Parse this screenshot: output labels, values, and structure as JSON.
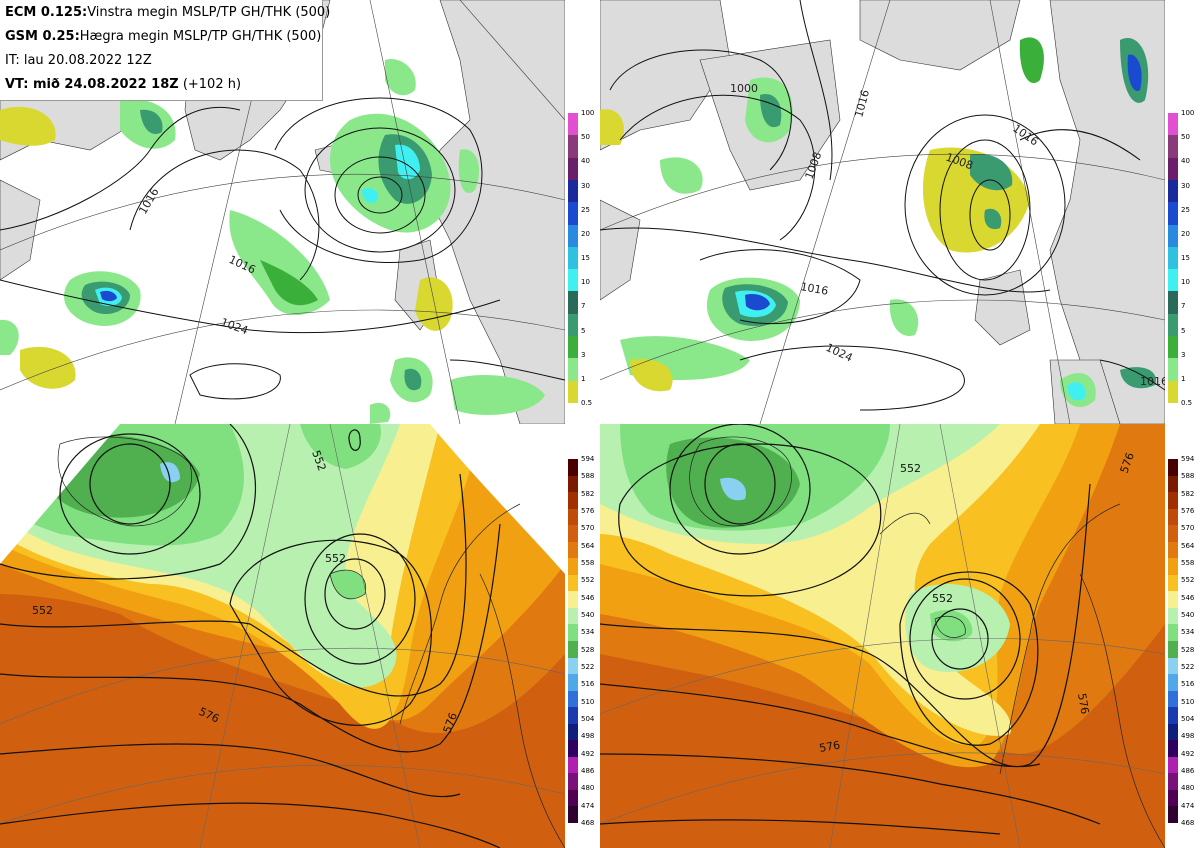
{
  "header": {
    "line1_bold": "ECM 0.125:",
    "line1_text": "Vinstra megin MSLP/TP GH/THK (500)",
    "line2_bold": "GSM 0.25:",
    "line2_text": "Hægra megin MSLP/TP GH/THK (500)",
    "line3": "IT: lau 20.08.2022 12Z",
    "line4_bold": "VT: mið 24.08.2022 18Z",
    "line4_text": " (+102 h)"
  },
  "precip_colorbar": {
    "labels": [
      "100",
      "50",
      "40",
      "30",
      "25",
      "20",
      "15",
      "10",
      "7",
      "5",
      "3",
      "1",
      "0.5"
    ],
    "colors": [
      "#e050d0",
      "#8a3a78",
      "#6a1f6a",
      "#1a2a9a",
      "#1a4ad0",
      "#2a8ae0",
      "#30c0e0",
      "#40f0f0",
      "#2a6a5a",
      "#3a9a70",
      "#3ab03a",
      "#8ae88a",
      "#d8d830"
    ]
  },
  "thickness_colorbar": {
    "labels": [
      "594",
      "588",
      "582",
      "576",
      "570",
      "564",
      "558",
      "552",
      "546",
      "540",
      "534",
      "528",
      "522",
      "516",
      "510",
      "504",
      "498",
      "492",
      "486",
      "480",
      "474",
      "468"
    ],
    "colors": [
      "#4a0000",
      "#7a1a00",
      "#a03000",
      "#c04a08",
      "#d06010",
      "#e07a10",
      "#f0a010",
      "#f8c020",
      "#f8f090",
      "#b8f0b0",
      "#80e080",
      "#50b050",
      "#8ad0f0",
      "#50a8e8",
      "#3070d8",
      "#1a3ab0",
      "#10207a",
      "#300060",
      "#b020b0",
      "#7a107a",
      "#500050",
      "#300030"
    ]
  },
  "maps": {
    "tl": {
      "isobars": [
        {
          "label": "1016",
          "count": 1
        },
        {
          "label": "1016",
          "count": 1
        },
        {
          "label": "1024",
          "count": 1
        }
      ]
    },
    "tr": {
      "isobars": [
        {
          "label": "1000"
        },
        {
          "label": "1008"
        },
        {
          "label": "1008"
        },
        {
          "label": "1016"
        },
        {
          "label": "1016"
        },
        {
          "label": "1016"
        },
        {
          "label": "1024"
        },
        {
          "label": "1016"
        }
      ]
    },
    "bl": {
      "contours": [
        {
          "label": "552"
        },
        {
          "label": "552"
        },
        {
          "label": "552"
        },
        {
          "label": "576"
        },
        {
          "label": "576"
        }
      ]
    },
    "br": {
      "contours": [
        {
          "label": "552"
        },
        {
          "label": "552"
        },
        {
          "label": "576"
        },
        {
          "label": "576"
        },
        {
          "label": "576"
        }
      ]
    }
  }
}
